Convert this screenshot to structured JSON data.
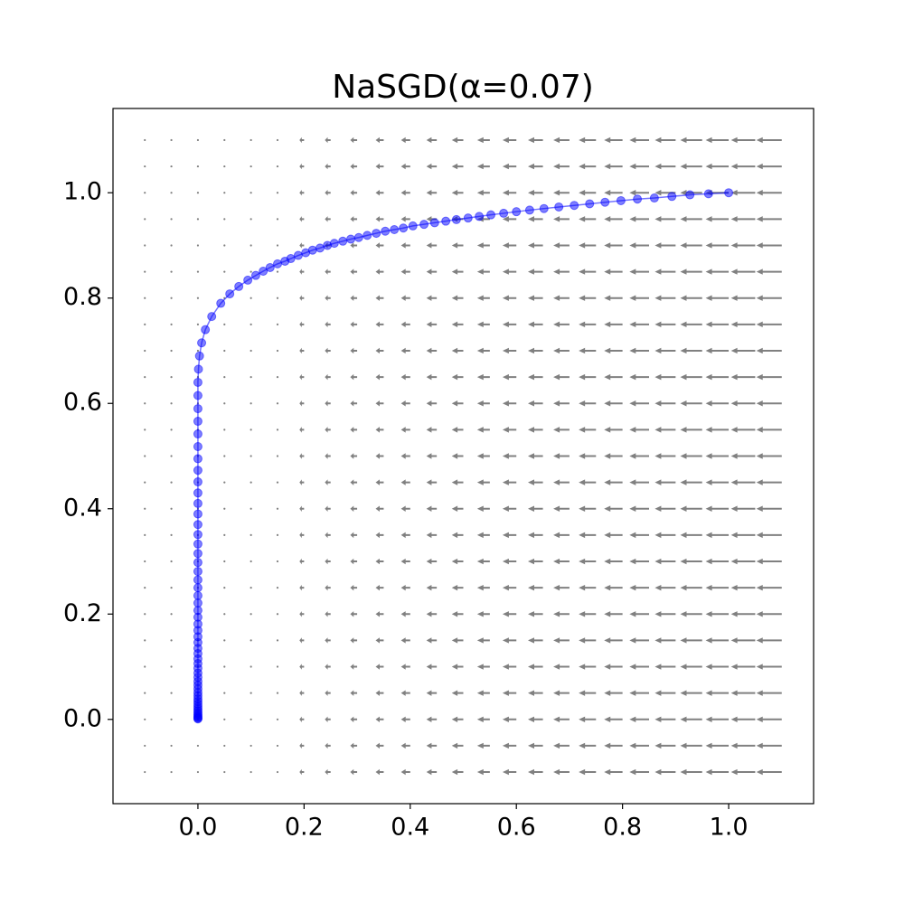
{
  "chart_data": {
    "type": "quiver-trajectory",
    "title": "NaSGD(α=0.07)",
    "xlim": [
      -0.16,
      1.16
    ],
    "ylim": [
      -0.16,
      1.16
    ],
    "xticks": [
      {
        "value": 0,
        "label": "0.0"
      },
      {
        "value": 0.2,
        "label": "0.2"
      },
      {
        "value": 0.4,
        "label": "0.4"
      },
      {
        "value": 0.6,
        "label": "0.6"
      },
      {
        "value": 0.8,
        "label": "0.8"
      },
      {
        "value": 1,
        "label": "1.0"
      }
    ],
    "yticks": [
      {
        "value": 0,
        "label": "0.0"
      },
      {
        "value": 0.2,
        "label": "0.2"
      },
      {
        "value": 0.4,
        "label": "0.4"
      },
      {
        "value": 0.6,
        "label": "0.6"
      },
      {
        "value": 0.8,
        "label": "0.8"
      },
      {
        "value": 1,
        "label": "1.0"
      }
    ],
    "quiver": {
      "color": "#808080",
      "x": [
        -0.1,
        -0.05,
        0,
        0.05,
        0.1,
        0.15,
        0.2,
        0.25,
        0.3,
        0.35,
        0.4,
        0.45,
        0.5,
        0.55,
        0.6,
        0.65,
        0.7,
        0.75,
        0.8,
        0.85,
        0.9,
        0.95,
        1,
        1.05,
        1.1
      ],
      "y": [
        -0.1,
        -0.05,
        0,
        0.05,
        0.1,
        0.15,
        0.2,
        0.25,
        0.3,
        0.35,
        0.4,
        0.45,
        0.5,
        0.55,
        0.6,
        0.65,
        0.7,
        0.75,
        0.8,
        0.85,
        0.9,
        0.95,
        1,
        1.05,
        1.1
      ],
      "u": [
        0.1,
        0.05,
        0,
        -0.05,
        -0.1,
        -0.15,
        -0.2,
        -0.25,
        -0.3,
        -0.35,
        -0.4,
        -0.45,
        -0.5,
        -0.55,
        -0.6,
        -0.65,
        -0.7,
        -0.75,
        -0.8,
        -0.85,
        -0.9,
        -0.95,
        -1,
        -1.05,
        -1.1
      ]
    },
    "series": [
      {
        "color": "blue",
        "x": [
          1.0,
          0.962,
          0.927,
          0.893,
          0.86,
          0.828,
          0.797,
          0.767,
          0.738,
          0.709,
          0.68,
          0.652,
          0.625,
          0.6,
          0.576,
          0.552,
          0.53,
          0.509,
          0.487,
          0.467,
          0.446,
          0.426,
          0.405,
          0.387,
          0.37,
          0.353,
          0.336,
          0.319,
          0.303,
          0.288,
          0.273,
          0.257,
          0.244,
          0.23,
          0.216,
          0.203,
          0.189,
          0.175,
          0.164,
          0.15,
          0.136,
          0.123,
          0.109,
          0.094,
          0.077,
          0.06,
          0.043,
          0.026,
          0.014,
          0.007,
          0.003,
          0.001,
          0,
          0,
          0,
          0,
          0,
          0,
          0,
          0,
          0,
          0,
          0,
          0,
          0,
          0,
          0,
          0,
          0,
          0,
          0,
          0,
          0,
          0,
          0,
          0,
          0,
          0,
          0,
          0,
          0,
          0,
          0,
          0,
          0,
          0,
          0,
          0,
          0,
          0,
          0,
          0,
          0,
          0,
          0,
          0,
          0,
          0,
          0,
          0,
          0,
          0,
          0,
          0
        ],
        "values": [
          1.0,
          0.998,
          0.996,
          0.993,
          0.99,
          0.988,
          0.985,
          0.982,
          0.979,
          0.976,
          0.973,
          0.97,
          0.967,
          0.964,
          0.961,
          0.958,
          0.955,
          0.952,
          0.949,
          0.946,
          0.943,
          0.94,
          0.937,
          0.933,
          0.93,
          0.927,
          0.923,
          0.919,
          0.915,
          0.912,
          0.908,
          0.904,
          0.9,
          0.895,
          0.891,
          0.886,
          0.881,
          0.875,
          0.87,
          0.865,
          0.858,
          0.851,
          0.843,
          0.834,
          0.822,
          0.808,
          0.79,
          0.765,
          0.74,
          0.715,
          0.69,
          0.665,
          0.64,
          0.615,
          0.59,
          0.566,
          0.542,
          0.518,
          0.495,
          0.473,
          0.451,
          0.43,
          0.41,
          0.39,
          0.37,
          0.351,
          0.333,
          0.315,
          0.298,
          0.281,
          0.265,
          0.25,
          0.235,
          0.221,
          0.207,
          0.194,
          0.181,
          0.169,
          0.157,
          0.146,
          0.135,
          0.125,
          0.115,
          0.106,
          0.097,
          0.088,
          0.08,
          0.072,
          0.065,
          0.058,
          0.051,
          0.045,
          0.039,
          0.034,
          0.029,
          0.024,
          0.02,
          0.016,
          0.012,
          0.009,
          0.006,
          0.004,
          0.002,
          0.001
        ]
      }
    ]
  }
}
